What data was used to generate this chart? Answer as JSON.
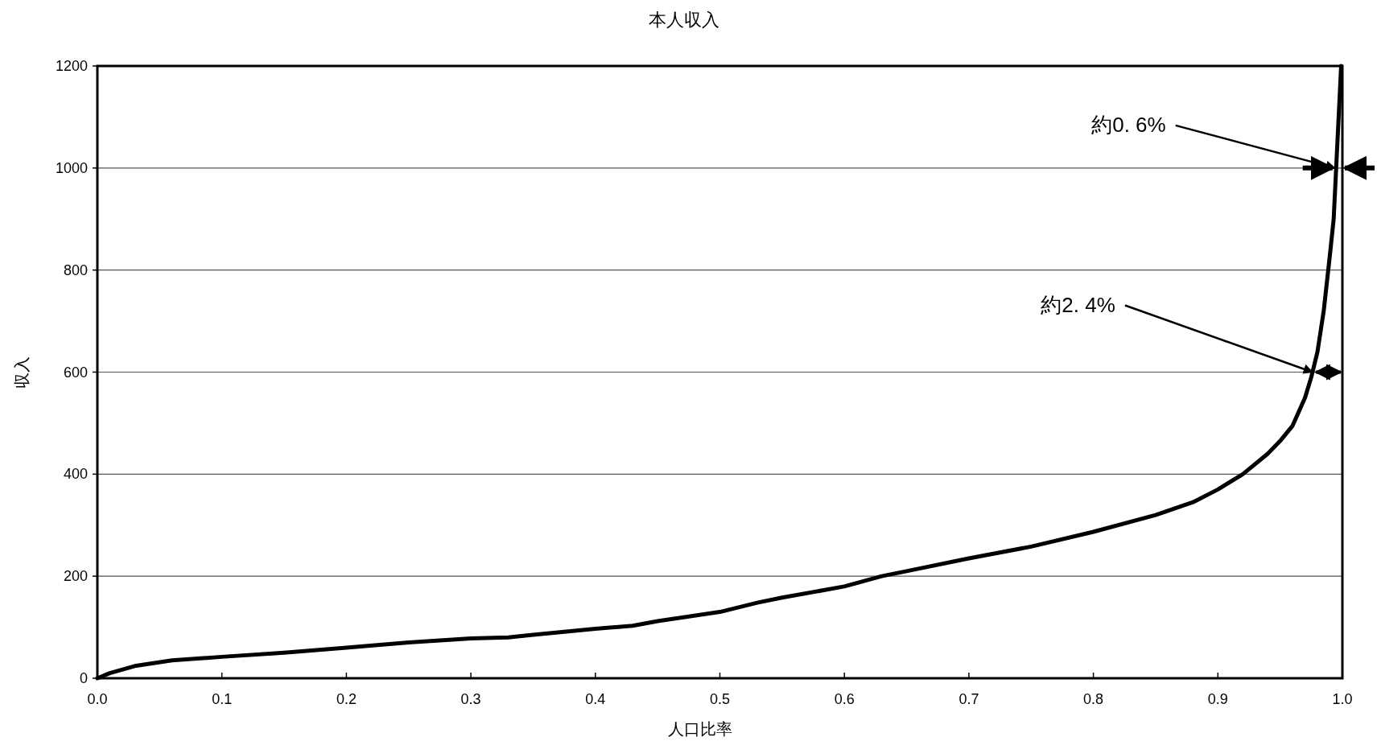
{
  "chart_data": {
    "type": "line",
    "title": "本人収入",
    "xlabel": "人口比率",
    "ylabel": "収入",
    "x": [
      0,
      0.01,
      0.03,
      0.06,
      0.1,
      0.15,
      0.2,
      0.25,
      0.3,
      0.33,
      0.35,
      0.4,
      0.43,
      0.45,
      0.5,
      0.53,
      0.55,
      0.6,
      0.63,
      0.65,
      0.7,
      0.75,
      0.8,
      0.85,
      0.88,
      0.9,
      0.92,
      0.94,
      0.95,
      0.96,
      0.97,
      0.975,
      0.98,
      0.985,
      0.99,
      0.993,
      0.995,
      0.997,
      0.999
    ],
    "series": [
      {
        "color": "#000000",
        "values": [
          0,
          10,
          24,
          35,
          42,
          50,
          60,
          70,
          78,
          80,
          85,
          97,
          103,
          112,
          130,
          148,
          158,
          180,
          200,
          210,
          235,
          258,
          287,
          320,
          345,
          370,
          400,
          440,
          465,
          495,
          550,
          590,
          640,
          720,
          830,
          900,
          1000,
          1100,
          1200
        ]
      }
    ],
    "xlim": [
      0,
      1
    ],
    "ylim": [
      0,
      1200
    ],
    "xticks": [
      {
        "value": 0,
        "label": "0.0"
      },
      0.1,
      0.2,
      0.3,
      0.4,
      0.5,
      0.6,
      0.7,
      0.8,
      0.9,
      {
        "value": 1,
        "label": "1.0"
      }
    ],
    "yticks": [
      0,
      200,
      400,
      600,
      800,
      1000,
      1200
    ],
    "grid": "y",
    "line_style": "solid",
    "annotations": [
      {
        "text": "約0. 6%",
        "x": 0.994,
        "y": 1000
      },
      {
        "text": "約2. 4%",
        "x": 0.976,
        "y": 600
      }
    ]
  }
}
